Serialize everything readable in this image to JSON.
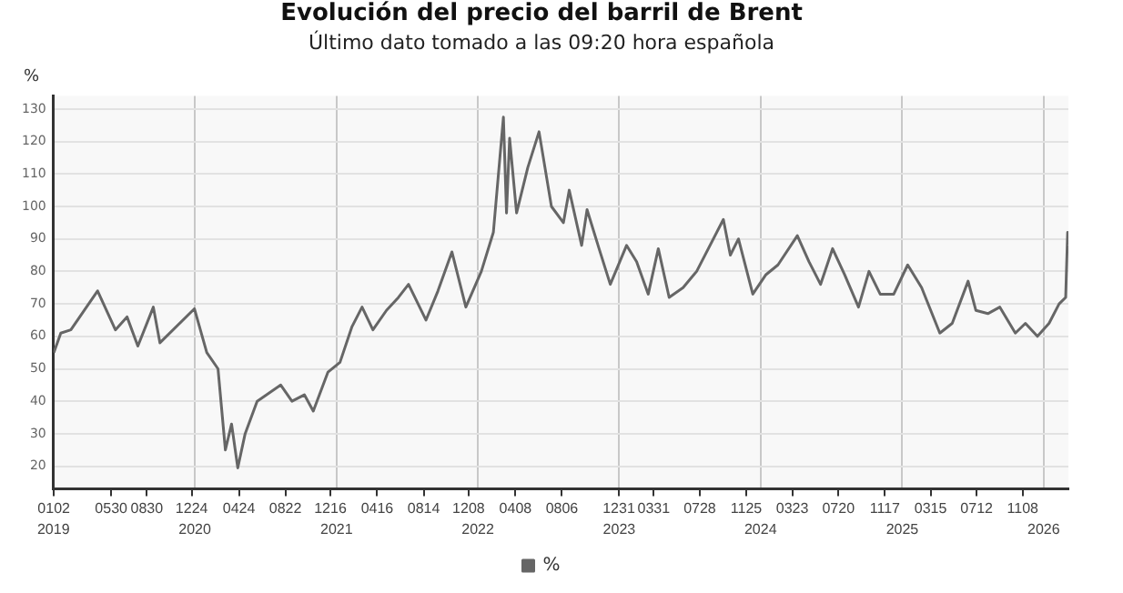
{
  "chart_data": {
    "type": "line",
    "title": "Evolución del precio del barril de Brent",
    "subtitle": "Último dato tomado a las 09:20 hora española",
    "ylabel": "%",
    "x": [
      "2019-01-02",
      "2019-01-20",
      "2019-02-15",
      "2019-04-25",
      "2019-06-10",
      "2019-07-10",
      "2019-08-07",
      "2019-09-16",
      "2019-10-03",
      "2019-12-31",
      "2020-02-01",
      "2020-03-01",
      "2020-03-20",
      "2020-04-05",
      "2020-04-21",
      "2020-05-10",
      "2020-06-10",
      "2020-08-10",
      "2020-09-08",
      "2020-10-10",
      "2020-11-02",
      "2020-12-10",
      "2021-01-10",
      "2021-02-10",
      "2021-03-08",
      "2021-04-05",
      "2021-05-10",
      "2021-06-10",
      "2021-07-06",
      "2021-08-20",
      "2021-09-20",
      "2021-10-26",
      "2021-12-01",
      "2022-01-10",
      "2022-02-10",
      "2022-03-08",
      "2022-03-16",
      "2022-03-24",
      "2022-04-11",
      "2022-05-10",
      "2022-06-08",
      "2022-07-10",
      "2022-08-10",
      "2022-08-25",
      "2022-09-26",
      "2022-10-10",
      "2022-11-10",
      "2022-12-09",
      "2023-01-20",
      "2023-02-15",
      "2023-03-17",
      "2023-04-12",
      "2023-05-10",
      "2023-06-15",
      "2023-07-20",
      "2023-09-27",
      "2023-10-15",
      "2023-11-05",
      "2023-12-12",
      "2024-01-15",
      "2024-02-15",
      "2024-04-05",
      "2024-05-05",
      "2024-06-04",
      "2024-07-05",
      "2024-08-05",
      "2024-09-10",
      "2024-10-07",
      "2024-11-05",
      "2024-12-10",
      "2025-01-15",
      "2025-02-20",
      "2025-04-08",
      "2025-05-10",
      "2025-06-20",
      "2025-07-10",
      "2025-08-10",
      "2025-09-10",
      "2025-10-20",
      "2025-11-15",
      "2025-12-16",
      "2026-01-15",
      "2026-02-10",
      "2026-02-27",
      "2026-03-04",
      "2026-03-06"
    ],
    "series": [
      {
        "name": "%",
        "color": "#666666",
        "values": [
          55,
          61,
          62,
          74,
          62,
          66,
          57,
          69,
          58,
          68.5,
          55,
          50,
          25,
          33,
          19.5,
          30,
          40,
          45,
          40,
          42,
          37,
          49,
          52,
          63,
          69,
          62,
          68,
          72,
          76,
          65,
          74,
          86,
          69,
          80,
          92,
          127.5,
          98,
          121,
          98,
          112,
          123,
          100,
          95,
          105,
          88,
          99,
          87,
          76,
          88,
          83,
          73,
          87,
          72,
          75,
          80,
          96,
          85,
          90,
          73,
          79,
          82,
          91,
          83,
          76,
          87,
          79,
          69,
          80,
          73,
          73,
          82,
          75,
          61,
          64,
          77,
          68,
          67,
          69,
          61,
          64,
          60,
          64,
          70,
          72,
          92,
          88
        ]
      }
    ],
    "xlim": [
      "2019-01-01",
      "2026-03-06"
    ],
    "xticks": [
      {
        "value": "2019-01-02",
        "label": "0102"
      },
      {
        "value": "2019-05-30",
        "label": "0530"
      },
      {
        "value": "2019-08-30",
        "label": "0830"
      },
      {
        "value": "2019-12-24",
        "label": "1224"
      },
      {
        "value": "2020-04-24",
        "label": "0424"
      },
      {
        "value": "2020-08-22",
        "label": "0822"
      },
      {
        "value": "2020-12-16",
        "label": "1216"
      },
      {
        "value": "2021-04-16",
        "label": "0416"
      },
      {
        "value": "2021-08-14",
        "label": "0814"
      },
      {
        "value": "2021-12-08",
        "label": "1208"
      },
      {
        "value": "2022-04-08",
        "label": "0408"
      },
      {
        "value": "2022-08-06",
        "label": "0806"
      },
      {
        "value": "2022-12-31",
        "label": "1231"
      },
      {
        "value": "2023-03-31",
        "label": "0331"
      },
      {
        "value": "2023-07-28",
        "label": "0728"
      },
      {
        "value": "2023-11-25",
        "label": "1125"
      },
      {
        "value": "2024-03-23",
        "label": "0323"
      },
      {
        "value": "2024-07-20",
        "label": "0720"
      },
      {
        "value": "2024-11-17",
        "label": "1117"
      },
      {
        "value": "2025-03-15",
        "label": "0315"
      },
      {
        "value": "2025-07-12",
        "label": "0712"
      },
      {
        "value": "2025-11-08",
        "label": "1108"
      }
    ],
    "x2lim": [
      "2019-01-01",
      "2026-03-06"
    ],
    "x2ticks": [
      {
        "value": "2019",
        "label": "2019"
      },
      {
        "value": "2020",
        "label": "2020"
      },
      {
        "value": "2021",
        "label": "2021"
      },
      {
        "value": "2022",
        "label": "2022"
      },
      {
        "value": "2023",
        "label": "2023"
      },
      {
        "value": "2024",
        "label": "2024"
      },
      {
        "value": "2025",
        "label": "2025"
      },
      {
        "value": "2026",
        "label": "2026"
      }
    ],
    "ylim": [
      13,
      134
    ],
    "yticks": [
      20,
      30,
      40,
      50,
      60,
      70,
      80,
      90,
      100,
      110,
      120,
      130
    ],
    "grid": true,
    "legend": "bottom",
    "marker": "none",
    "line_style": "solid"
  }
}
